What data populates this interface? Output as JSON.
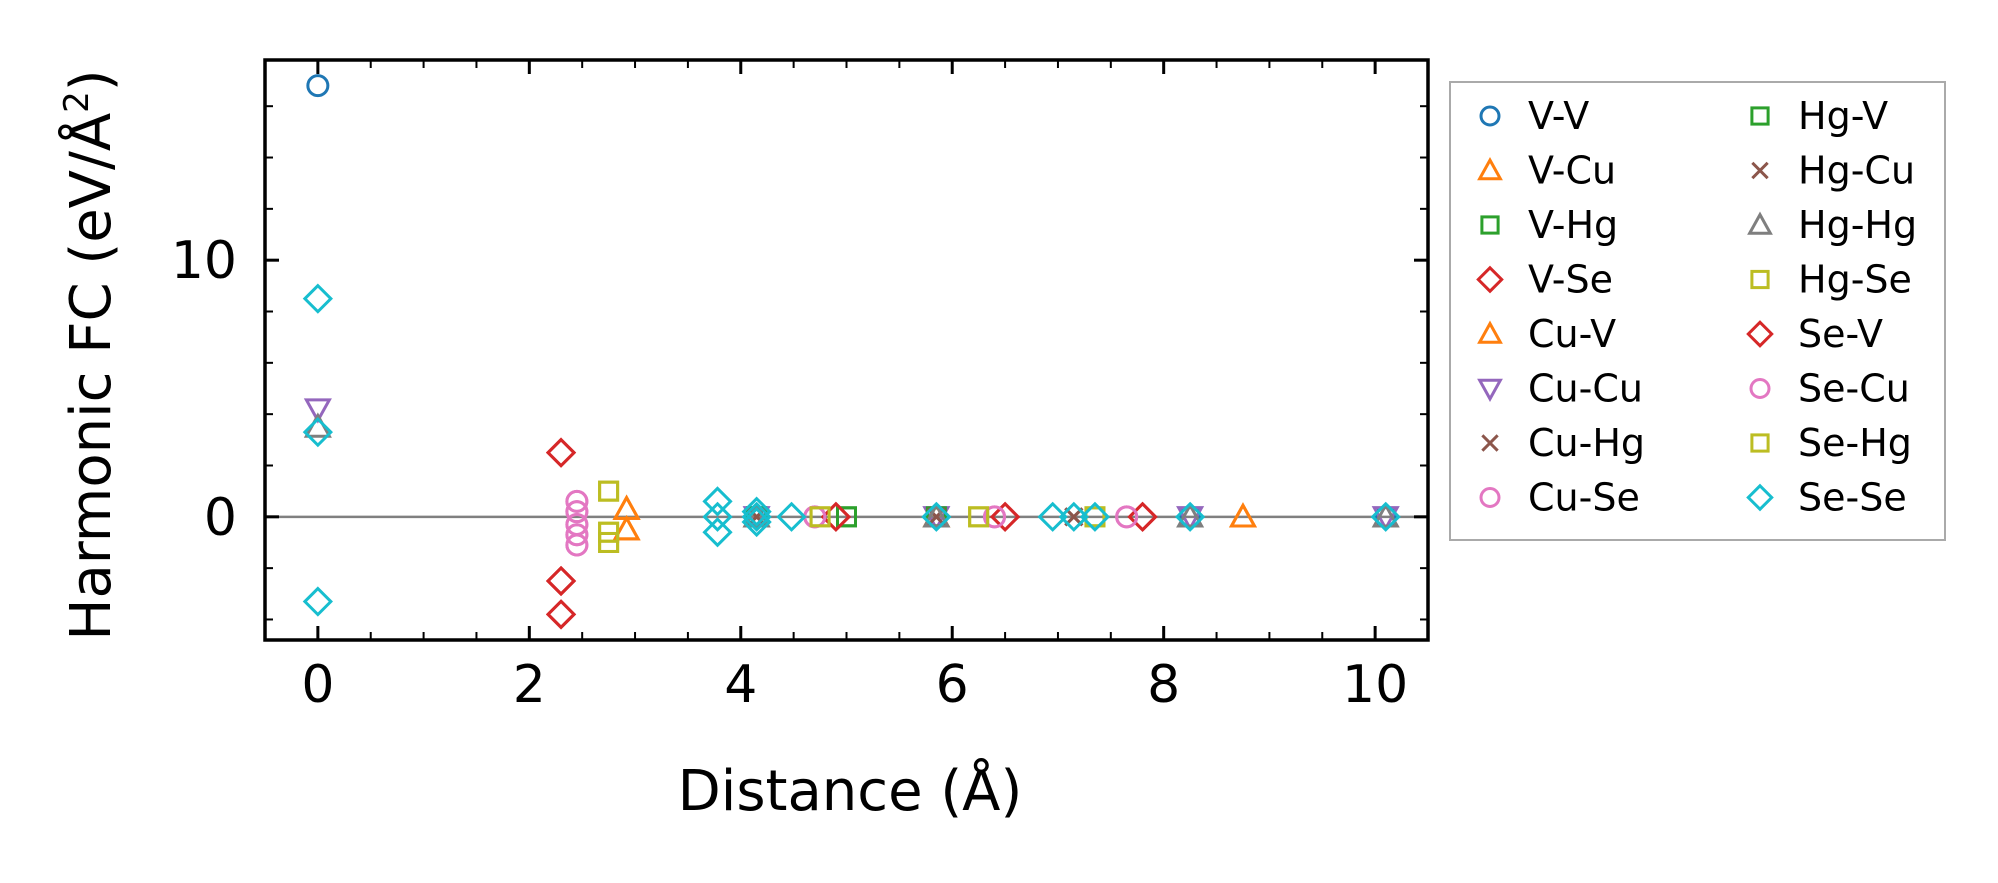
{
  "chart_data": {
    "type": "scatter",
    "xlabel": "Distance (Å)",
    "ylabel_main": "Harmonic FC (eV/Å",
    "ylabel_sup": "2",
    "ylabel_close": ")",
    "xlim": [
      -0.5,
      10.5
    ],
    "ylim": [
      -4.8,
      17.8
    ],
    "xticks": [
      0,
      2,
      4,
      6,
      8,
      10
    ],
    "yticks": [
      0,
      10
    ],
    "xtick_labels": [
      "0",
      "2",
      "4",
      "6",
      "8",
      "10"
    ],
    "ytick_labels": [
      "0",
      "10"
    ],
    "legend_position": "outside-right",
    "reference_line_y": 0,
    "series": [
      {
        "name": "V-V",
        "marker": "circle",
        "color": "#1f77b4",
        "points": [
          [
            0,
            16.8
          ],
          [
            5.85,
            0.0
          ],
          [
            8.25,
            0.0
          ],
          [
            10.1,
            0.0
          ]
        ]
      },
      {
        "name": "V-Cu",
        "marker": "triangle-up",
        "color": "#ff7f0e",
        "points": [
          [
            2.92,
            0.3
          ],
          [
            2.92,
            -0.5
          ],
          [
            4.15,
            0.0
          ],
          [
            5.85,
            0.0
          ],
          [
            8.75,
            0.0
          ]
        ]
      },
      {
        "name": "V-Hg",
        "marker": "square",
        "color": "#2ca02c",
        "points": [
          [
            4.15,
            0.0
          ],
          [
            5.0,
            0.0
          ],
          [
            5.85,
            0.0
          ]
        ]
      },
      {
        "name": "V-Se",
        "marker": "diamond",
        "color": "#d62728",
        "points": [
          [
            2.3,
            2.5
          ],
          [
            2.3,
            -2.5
          ],
          [
            2.3,
            -3.8
          ],
          [
            4.9,
            0.0
          ],
          [
            6.5,
            0.0
          ],
          [
            7.8,
            0.0
          ]
        ]
      },
      {
        "name": "Cu-V",
        "marker": "triangle-up",
        "color": "#ff7f0e",
        "points": [
          [
            2.92,
            0.3
          ],
          [
            2.92,
            -0.5
          ],
          [
            4.15,
            0.0
          ],
          [
            5.85,
            0.0
          ],
          [
            8.75,
            0.0
          ]
        ]
      },
      {
        "name": "Cu-Cu",
        "marker": "triangle-down",
        "color": "#9467bd",
        "points": [
          [
            0,
            4.2
          ],
          [
            4.15,
            0.0
          ],
          [
            5.85,
            0.0
          ],
          [
            8.25,
            0.0
          ],
          [
            10.1,
            0.0
          ]
        ]
      },
      {
        "name": "Cu-Hg",
        "marker": "x",
        "color": "#8c564b",
        "points": [
          [
            4.15,
            0.0
          ],
          [
            5.85,
            0.0
          ],
          [
            7.15,
            0.0
          ]
        ]
      },
      {
        "name": "Cu-Se",
        "marker": "circle",
        "color": "#e377c2",
        "points": [
          [
            2.45,
            0.6
          ],
          [
            2.45,
            0.2
          ],
          [
            2.45,
            -0.3
          ],
          [
            2.45,
            -0.7
          ],
          [
            2.45,
            -1.1
          ],
          [
            4.7,
            0.0
          ],
          [
            6.4,
            0.0
          ],
          [
            7.65,
            0.0
          ]
        ]
      },
      {
        "name": "Hg-V",
        "marker": "square",
        "color": "#2ca02c",
        "points": [
          [
            4.15,
            0.0
          ],
          [
            5.0,
            0.0
          ],
          [
            5.85,
            0.0
          ]
        ]
      },
      {
        "name": "Hg-Cu",
        "marker": "x",
        "color": "#8c564b",
        "points": [
          [
            4.15,
            0.0
          ],
          [
            5.85,
            0.0
          ],
          [
            7.15,
            0.0
          ]
        ]
      },
      {
        "name": "Hg-Hg",
        "marker": "triangle-up",
        "color": "#7f7f7f",
        "points": [
          [
            0,
            3.5
          ],
          [
            4.15,
            0.0
          ],
          [
            5.85,
            0.0
          ],
          [
            8.25,
            0.0
          ],
          [
            10.1,
            0.0
          ]
        ]
      },
      {
        "name": "Hg-Se",
        "marker": "square",
        "color": "#bcbd22",
        "points": [
          [
            2.75,
            1.0
          ],
          [
            2.75,
            -0.6
          ],
          [
            2.75,
            -1.0
          ],
          [
            4.75,
            0.0
          ],
          [
            6.25,
            0.0
          ],
          [
            7.35,
            0.0
          ]
        ]
      },
      {
        "name": "Se-V",
        "marker": "diamond",
        "color": "#d62728",
        "points": [
          [
            2.3,
            2.5
          ],
          [
            2.3,
            -2.5
          ],
          [
            2.3,
            -3.8
          ],
          [
            4.9,
            0.0
          ],
          [
            6.5,
            0.0
          ],
          [
            7.8,
            0.0
          ]
        ]
      },
      {
        "name": "Se-Cu",
        "marker": "circle",
        "color": "#e377c2",
        "points": [
          [
            2.45,
            0.6
          ],
          [
            2.45,
            0.2
          ],
          [
            2.45,
            -0.3
          ],
          [
            2.45,
            -0.7
          ],
          [
            2.45,
            -1.1
          ],
          [
            4.7,
            0.0
          ],
          [
            6.4,
            0.0
          ],
          [
            7.65,
            0.0
          ]
        ]
      },
      {
        "name": "Se-Hg",
        "marker": "square",
        "color": "#bcbd22",
        "points": [
          [
            2.75,
            1.0
          ],
          [
            2.75,
            -0.6
          ],
          [
            2.75,
            -1.0
          ],
          [
            4.75,
            0.0
          ],
          [
            6.25,
            0.0
          ],
          [
            7.35,
            0.0
          ]
        ]
      },
      {
        "name": "Se-Se",
        "marker": "diamond",
        "color": "#17becf",
        "points": [
          [
            0,
            8.5
          ],
          [
            0,
            3.3
          ],
          [
            0,
            -3.3
          ],
          [
            3.78,
            0.6
          ],
          [
            3.78,
            0.0
          ],
          [
            3.78,
            -0.6
          ],
          [
            4.15,
            0.2
          ],
          [
            4.15,
            0.0
          ],
          [
            4.15,
            -0.2
          ],
          [
            4.48,
            0.0
          ],
          [
            5.85,
            0.0
          ],
          [
            6.95,
            0.0
          ],
          [
            7.15,
            0.0
          ],
          [
            7.35,
            0.0
          ],
          [
            8.25,
            0.0
          ],
          [
            10.1,
            0.0
          ]
        ]
      }
    ]
  }
}
